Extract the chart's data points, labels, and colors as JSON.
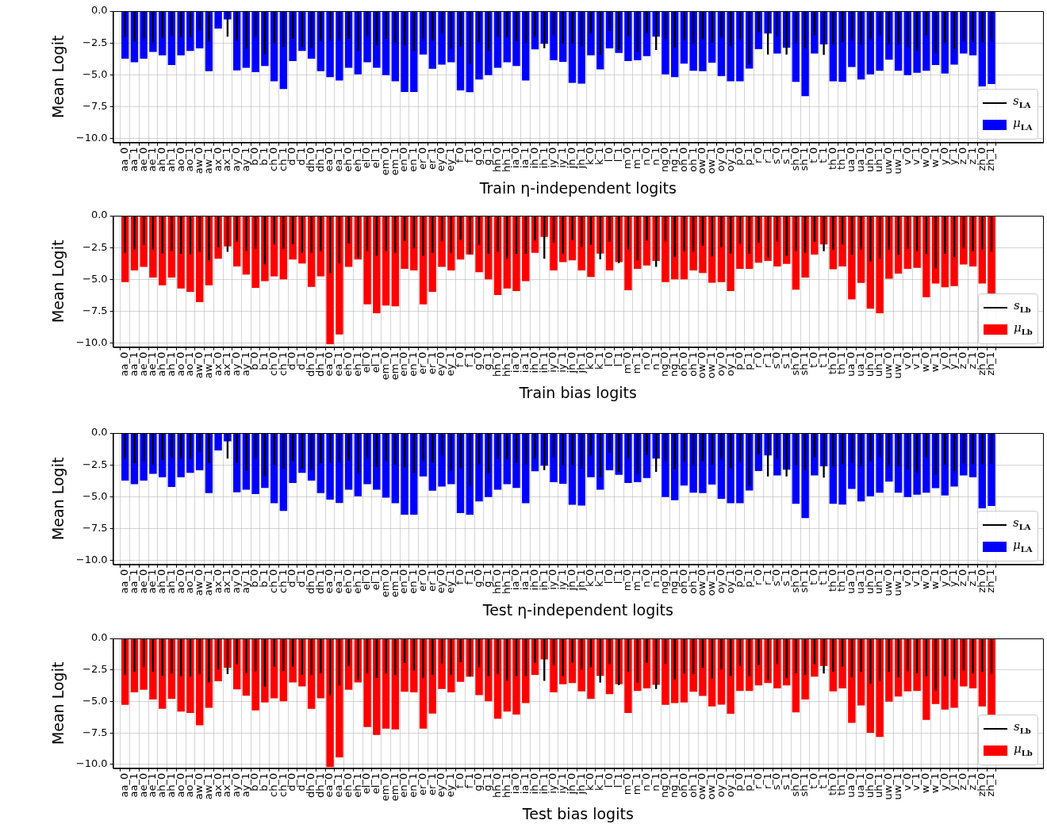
{
  "chart_data": [
    {
      "type": "bar",
      "xlabel": "Train η-independent logits",
      "ylabel": "Mean Logit",
      "grid": true,
      "legend": "bottom right",
      "ylim": [
        -10.3,
        0
      ],
      "yticks": [
        {
          "value": 0,
          "label": "0.0"
        },
        {
          "value": -2.5,
          "label": "−2.5"
        },
        {
          "value": -5,
          "label": "−5.0"
        },
        {
          "value": -7.5,
          "label": "−7.5"
        },
        {
          "value": -10,
          "label": "−10.0"
        }
      ],
      "categories": [
        "aa_0",
        "aa_1",
        "ae_0",
        "ae_1",
        "ah_0",
        "ah_1",
        "ao_0",
        "ao_1",
        "aw_0",
        "aw_1",
        "ax_0",
        "ax_1",
        "ay_0",
        "ay_1",
        "b_0",
        "b_1",
        "ch_0",
        "ch_1",
        "d_0",
        "d_1",
        "dh_0",
        "dh_1",
        "ea_0",
        "ea_1",
        "eh_0",
        "eh_1",
        "el_0",
        "el_1",
        "em_0",
        "em_1",
        "en_0",
        "en_1",
        "er_0",
        "er_1",
        "ey_0",
        "ey_1",
        "f_0",
        "f_1",
        "g_0",
        "g_1",
        "hh_0",
        "hh_1",
        "ia_0",
        "ia_1",
        "ih_0",
        "ih_1",
        "iy_0",
        "iy_1",
        "jh_0",
        "jh_1",
        "k_0",
        "k_1",
        "l_0",
        "l_1",
        "m_0",
        "m_1",
        "n_0",
        "n_1",
        "ng_0",
        "ng_1",
        "oh_0",
        "oh_1",
        "ow_0",
        "ow_1",
        "oy_0",
        "oy_1",
        "p_0",
        "p_1",
        "r_0",
        "r_1",
        "s_0",
        "s_1",
        "sh_0",
        "sh_1",
        "t_0",
        "t_1",
        "th_0",
        "th_1",
        "ua_0",
        "ua_1",
        "uh_0",
        "uh_1",
        "uw_0",
        "uw_1",
        "v_0",
        "v_1",
        "w_0",
        "w_1",
        "y_0",
        "y_1",
        "z_0",
        "z_1",
        "zh_0",
        "zh_1"
      ],
      "series": [
        {
          "type": "bar",
          "name": "μ$_{LA}$",
          "color": "#0000ff",
          "values": [
            -3.73,
            -4.0,
            -3.73,
            -3.2,
            -3.47,
            -4.23,
            -3.47,
            -3.13,
            -2.92,
            -4.71,
            -1.36,
            -0.65,
            -4.64,
            -4.45,
            -4.78,
            -4.31,
            -5.5,
            -6.1,
            -3.92,
            -3.13,
            -3.73,
            -4.71,
            -5.17,
            -5.43,
            -4.45,
            -4.95,
            -4.0,
            -4.45,
            -5.02,
            -5.5,
            -6.34,
            -6.34,
            -3.4,
            -4.52,
            -4.19,
            -4.0,
            -6.22,
            -6.36,
            -5.36,
            -5.02,
            -4.45,
            -4.0,
            -4.31,
            -5.43,
            -3.0,
            -2.56,
            -3.85,
            -3.98,
            -5.62,
            -5.69,
            -3.47,
            -4.57,
            -2.92,
            -3.28,
            -3.92,
            -3.85,
            -3.52,
            -2.01,
            -4.95,
            -5.17,
            -4.11,
            -4.67,
            -4.71,
            -4.04,
            -5.09,
            -5.5,
            -5.5,
            -4.5,
            -2.99,
            -1.75,
            -3.33,
            -2.87,
            -5.55,
            -6.67,
            -3.33,
            -2.61,
            -5.5,
            -5.55,
            -4.38,
            -5.36,
            -4.95,
            -4.67,
            -3.8,
            -4.67,
            -5.02,
            -4.83,
            -4.67,
            -4.23,
            -4.9,
            -4.19,
            -3.33,
            -3.47,
            -5.91,
            -5.72
          ]
        },
        {
          "type": "bar",
          "name": "s$_{LA}$",
          "color": "#000000",
          "values": [
            -2.0,
            -2.36,
            -2.19,
            -2.48,
            -2.12,
            -1.95,
            -2.0,
            -2.05,
            -1.52,
            -2.36,
            null,
            -2.0,
            -2.31,
            -2.95,
            -2.0,
            -3.38,
            -2.52,
            -2.79,
            -2.17,
            -2.79,
            -2.88,
            -2.36,
            -2.31,
            -2.31,
            -2.17,
            -3.14,
            -1.95,
            -2.67,
            -2.17,
            -2.48,
            -2.67,
            -3.12,
            -2.19,
            -2.31,
            -1.76,
            -2.95,
            -2.76,
            -4.14,
            -2.48,
            -3.12,
            -2.0,
            -2.05,
            -2.31,
            -2.48,
            -2.0,
            -2.9,
            -1.88,
            -2.53,
            -2.53,
            -2.8,
            -1.75,
            -3.44,
            -1.55,
            -3.04,
            -1.96,
            -3.2,
            -1.72,
            -3.04,
            -2.2,
            -2.85,
            -2.25,
            -2.56,
            -2.2,
            -2.49,
            -2.06,
            -2.73,
            -2.25,
            -4.19,
            -1.65,
            -3.4,
            -2.01,
            -3.4,
            -2.53,
            -2.92,
            -1.89,
            -3.44,
            -2.61,
            -2.44,
            -2.32,
            -2.61,
            -2.2,
            -1.89,
            -2.61,
            -2.61,
            -2.85,
            -3.09,
            -1.89,
            -3.28,
            -2.49,
            -2.99,
            -2.37,
            -2.44,
            -2.44,
            -2.37
          ]
        }
      ]
    },
    {
      "type": "bar",
      "xlabel": "Train bias logits",
      "ylabel": "Mean Logit",
      "grid": true,
      "legend": "bottom right",
      "ylim": [
        -10.3,
        0
      ],
      "yticks": [
        {
          "value": 0,
          "label": "0.0"
        },
        {
          "value": -2.5,
          "label": "−2.5"
        },
        {
          "value": -5,
          "label": "−5.0"
        },
        {
          "value": -7.5,
          "label": "−7.5"
        },
        {
          "value": -10,
          "label": "−10.0"
        }
      ],
      "categories": [
        "aa_0",
        "aa_1",
        "ae_0",
        "ae_1",
        "ah_0",
        "ah_1",
        "ao_0",
        "ao_1",
        "aw_0",
        "aw_1",
        "ax_0",
        "ax_1",
        "ay_0",
        "ay_1",
        "b_0",
        "b_1",
        "ch_0",
        "ch_1",
        "d_0",
        "d_1",
        "dh_0",
        "dh_1",
        "ea_0",
        "ea_1",
        "eh_0",
        "eh_1",
        "el_0",
        "el_1",
        "em_0",
        "em_1",
        "en_0",
        "en_1",
        "er_0",
        "er_1",
        "ey_0",
        "ey_1",
        "f_0",
        "f_1",
        "g_0",
        "g_1",
        "hh_0",
        "hh_1",
        "ia_0",
        "ia_1",
        "ih_0",
        "ih_1",
        "iy_0",
        "iy_1",
        "jh_0",
        "jh_1",
        "k_0",
        "k_1",
        "l_0",
        "l_1",
        "m_0",
        "m_1",
        "n_0",
        "n_1",
        "ng_0",
        "ng_1",
        "oh_0",
        "oh_1",
        "ow_0",
        "ow_1",
        "oy_0",
        "oy_1",
        "p_0",
        "p_1",
        "r_0",
        "r_1",
        "s_0",
        "s_1",
        "sh_0",
        "sh_1",
        "t_0",
        "t_1",
        "th_0",
        "th_1",
        "ua_0",
        "ua_1",
        "uh_0",
        "uh_1",
        "uw_0",
        "uw_1",
        "v_0",
        "v_1",
        "w_0",
        "w_1",
        "y_0",
        "y_1",
        "z_0",
        "z_1",
        "zh_0",
        "zh_1"
      ],
      "series": [
        {
          "type": "bar",
          "name": "μ$_{Lb}$",
          "color": "#ff0000",
          "values": [
            -5.2,
            -4.28,
            -4.01,
            -4.85,
            -5.46,
            -4.85,
            -5.7,
            -5.96,
            -6.77,
            -5.46,
            -3.37,
            -2.4,
            -3.97,
            -4.61,
            -5.65,
            -5.13,
            -4.75,
            -4.99,
            -3.44,
            -3.75,
            -5.58,
            -4.75,
            -10.07,
            -9.31,
            -4.01,
            -3.44,
            -6.94,
            -7.65,
            -7.03,
            -7.1,
            -4.16,
            -4.28,
            -6.94,
            -5.96,
            -4.01,
            -4.28,
            -3.44,
            -3.04,
            -4.42,
            -4.99,
            -6.22,
            -5.7,
            -5.91,
            -5.13,
            -2.9,
            -1.66,
            -4.28,
            -3.63,
            -3.49,
            -4.28,
            -4.8,
            -2.97,
            -4.28,
            -3.63,
            -5.84,
            -4.16,
            -3.9,
            -3.54,
            -5.2,
            -4.99,
            -4.99,
            -4.28,
            -4.49,
            -5.25,
            -5.2,
            -5.91,
            -4.16,
            -4.16,
            -3.68,
            -3.54,
            -3.97,
            -3.78,
            -5.8,
            -4.85,
            -3.04,
            -2.26,
            -4.2,
            -3.97,
            -6.56,
            -5.27,
            -7.29,
            -7.65,
            -4.94,
            -4.54,
            -4.16,
            -4.09,
            -6.39,
            -5.32,
            -5.61,
            -5.51,
            -3.82,
            -3.97,
            -5.32,
            -6.1
          ]
        },
        {
          "type": "bar",
          "name": "s$_{Lb}$",
          "color": "#000000",
          "values": [
            -2.9,
            -2.64,
            -2.28,
            -2.64,
            -2.95,
            -2.78,
            -2.99,
            -3.02,
            -2.83,
            -3.49,
            -2.47,
            -2.83,
            -2.04,
            -2.76,
            -2.59,
            -3.82,
            -2.23,
            -2.59,
            -2.23,
            -2.9,
            -2.9,
            -2.76,
            -4.49,
            -3.73,
            -2.18,
            -3.3,
            -2.76,
            -3.14,
            -2.76,
            -2.9,
            -1.95,
            -2.54,
            -3.14,
            -2.9,
            -1.99,
            -2.9,
            -1.88,
            -3.02,
            -2.28,
            -2.99,
            -2.83,
            -3.35,
            -2.99,
            -2.99,
            -1.95,
            -3.37,
            -2.11,
            -2.97,
            -1.92,
            -2.47,
            -2.28,
            -3.42,
            -2.04,
            -3.71,
            -2.64,
            -3.49,
            -1.95,
            -4.01,
            -2.02,
            -3.25,
            -2.78,
            -2.83,
            -2.35,
            -3.18,
            -2.47,
            -2.95,
            -2.18,
            -2.99,
            -2.11,
            -3.3,
            -2.04,
            -3.14,
            -2.76,
            -2.9,
            -2.04,
            -2.78,
            -2.66,
            -2.23,
            -3.06,
            -2.66,
            -3.59,
            -3.37,
            -2.66,
            -3.06,
            -2.59,
            -2.76,
            -2.99,
            -4.13,
            -2.99,
            -3.25,
            -2.54,
            -2.78,
            -2.64,
            -2.83
          ]
        }
      ]
    },
    {
      "type": "bar",
      "xlabel": "Test η-independent logits",
      "ylabel": "Mean Logit",
      "grid": true,
      "legend": "bottom right",
      "ylim": [
        -10.3,
        0
      ],
      "yticks": [
        {
          "value": 0,
          "label": "0.0"
        },
        {
          "value": -2.5,
          "label": "−2.5"
        },
        {
          "value": -5,
          "label": "−5.0"
        },
        {
          "value": -7.5,
          "label": "−7.5"
        },
        {
          "value": -10,
          "label": "−10.0"
        }
      ],
      "categories": [
        "aa_0",
        "aa_1",
        "ae_0",
        "ae_1",
        "ah_0",
        "ah_1",
        "ao_0",
        "ao_1",
        "aw_0",
        "aw_1",
        "ax_0",
        "ax_1",
        "ay_0",
        "ay_1",
        "b_0",
        "b_1",
        "ch_0",
        "ch_1",
        "d_0",
        "d_1",
        "dh_0",
        "dh_1",
        "ea_0",
        "ea_1",
        "eh_0",
        "eh_1",
        "el_0",
        "el_1",
        "em_0",
        "em_1",
        "en_0",
        "en_1",
        "er_0",
        "er_1",
        "ey_0",
        "ey_1",
        "f_0",
        "f_1",
        "g_0",
        "g_1",
        "hh_0",
        "hh_1",
        "ia_0",
        "ia_1",
        "ih_0",
        "ih_1",
        "iy_0",
        "iy_1",
        "jh_0",
        "jh_1",
        "k_0",
        "k_1",
        "l_0",
        "l_1",
        "m_0",
        "m_1",
        "n_0",
        "n_1",
        "ng_0",
        "ng_1",
        "oh_0",
        "oh_1",
        "ow_0",
        "ow_1",
        "oy_0",
        "oy_1",
        "p_0",
        "p_1",
        "r_0",
        "r_1",
        "s_0",
        "s_1",
        "sh_0",
        "sh_1",
        "t_0",
        "t_1",
        "th_0",
        "th_1",
        "ua_0",
        "ua_1",
        "uh_0",
        "uh_1",
        "uw_0",
        "uw_1",
        "v_0",
        "v_1",
        "w_0",
        "w_1",
        "y_0",
        "y_1",
        "z_0",
        "z_1",
        "zh_0",
        "zh_1"
      ],
      "series": [
        {
          "type": "bar",
          "name": "μ$_{LA}$",
          "color": "#0000ff",
          "values": [
            -3.73,
            -4.0,
            -3.73,
            -3.2,
            -3.47,
            -4.23,
            -3.47,
            -3.13,
            -2.92,
            -4.71,
            -1.36,
            -0.65,
            -4.64,
            -4.45,
            -4.78,
            -4.31,
            -5.5,
            -6.1,
            -3.92,
            -3.13,
            -3.73,
            -4.71,
            -5.22,
            -5.48,
            -4.45,
            -4.95,
            -4.0,
            -4.45,
            -5.07,
            -5.5,
            -6.4,
            -6.4,
            -3.4,
            -4.52,
            -4.19,
            -4.0,
            -6.27,
            -6.4,
            -5.36,
            -5.02,
            -4.45,
            -4.0,
            -4.31,
            -5.5,
            -3.0,
            -2.56,
            -3.85,
            -3.98,
            -5.62,
            -5.69,
            -3.47,
            -4.45,
            -2.92,
            -3.28,
            -3.92,
            -3.85,
            -3.52,
            -2.01,
            -5.02,
            -5.27,
            -4.11,
            -4.67,
            -4.71,
            -4.04,
            -5.15,
            -5.5,
            -5.5,
            -4.5,
            -2.99,
            -1.75,
            -3.33,
            -2.87,
            -5.55,
            -6.67,
            -3.33,
            -2.61,
            -5.55,
            -5.6,
            -4.38,
            -5.36,
            -4.95,
            -4.67,
            -3.8,
            -4.67,
            -5.02,
            -4.83,
            -4.67,
            -4.32,
            -4.9,
            -4.19,
            -3.33,
            -3.47,
            -5.91,
            -5.72
          ]
        },
        {
          "type": "bar",
          "name": "s$_{LA}$",
          "color": "#000000",
          "values": [
            -2.0,
            -2.36,
            -2.19,
            -2.48,
            -2.12,
            -1.95,
            -2.0,
            -2.05,
            -1.52,
            -2.36,
            null,
            -2.0,
            -2.31,
            -2.95,
            -2.0,
            -3.38,
            -2.52,
            -2.79,
            -2.17,
            -2.79,
            -2.88,
            -2.36,
            -2.31,
            -2.31,
            -2.17,
            -3.14,
            -1.95,
            -2.67,
            -2.17,
            -2.48,
            -2.67,
            -3.12,
            -2.19,
            -2.31,
            -1.76,
            -2.95,
            -2.76,
            -4.14,
            -2.48,
            -3.12,
            -2.0,
            -2.05,
            -2.31,
            -2.48,
            -2.0,
            -2.9,
            -1.88,
            -2.53,
            -2.53,
            -2.8,
            -1.75,
            -3.44,
            -1.55,
            -3.04,
            -1.96,
            -3.2,
            -1.72,
            -3.04,
            -2.2,
            -2.85,
            -2.25,
            -2.56,
            -2.2,
            -2.49,
            -2.06,
            -2.73,
            -2.25,
            -4.19,
            -1.65,
            -3.4,
            -2.01,
            -3.4,
            -2.53,
            -2.92,
            -1.89,
            -3.5,
            -2.61,
            -2.44,
            -2.32,
            -2.61,
            -2.2,
            -1.89,
            -2.61,
            -2.61,
            -2.85,
            -3.09,
            -1.89,
            -3.28,
            -2.49,
            -2.99,
            -2.37,
            -2.44,
            -2.44,
            -2.37
          ]
        }
      ]
    },
    {
      "type": "bar",
      "xlabel": "Test bias logits",
      "ylabel": "Mean Logit",
      "grid": true,
      "legend": "bottom right",
      "ylim": [
        -10.3,
        0
      ],
      "yticks": [
        {
          "value": 0,
          "label": "0.0"
        },
        {
          "value": -2.5,
          "label": "−2.5"
        },
        {
          "value": -5,
          "label": "−5.0"
        },
        {
          "value": -7.5,
          "label": "−7.5"
        },
        {
          "value": -10,
          "label": "−10.0"
        }
      ],
      "categories": [
        "aa_0",
        "aa_1",
        "ae_0",
        "ae_1",
        "ah_0",
        "ah_1",
        "ao_0",
        "ao_1",
        "aw_0",
        "aw_1",
        "ax_0",
        "ax_1",
        "ay_0",
        "ay_1",
        "b_0",
        "b_1",
        "ch_0",
        "ch_1",
        "d_0",
        "d_1",
        "dh_0",
        "dh_1",
        "ea_0",
        "ea_1",
        "eh_0",
        "eh_1",
        "el_0",
        "el_1",
        "em_0",
        "em_1",
        "en_0",
        "en_1",
        "er_0",
        "er_1",
        "ey_0",
        "ey_1",
        "f_0",
        "f_1",
        "g_0",
        "g_1",
        "hh_0",
        "hh_1",
        "ia_0",
        "ia_1",
        "ih_0",
        "ih_1",
        "iy_0",
        "iy_1",
        "jh_0",
        "jh_1",
        "k_0",
        "k_1",
        "l_0",
        "l_1",
        "m_0",
        "m_1",
        "n_0",
        "n_1",
        "ng_0",
        "ng_1",
        "oh_0",
        "oh_1",
        "ow_0",
        "ow_1",
        "oy_0",
        "oy_1",
        "p_0",
        "p_1",
        "r_0",
        "r_1",
        "s_0",
        "s_1",
        "sh_0",
        "sh_1",
        "t_0",
        "t_1",
        "th_0",
        "th_1",
        "ua_0",
        "ua_1",
        "uh_0",
        "uh_1",
        "uw_0",
        "uw_1",
        "v_0",
        "v_1",
        "w_0",
        "w_1",
        "y_0",
        "y_1",
        "z_0",
        "z_1",
        "zh_0",
        "zh_1"
      ],
      "series": [
        {
          "type": "bar",
          "name": "μ$_{Lb}$",
          "color": "#ff0000",
          "values": [
            -5.27,
            -4.28,
            -4.08,
            -4.85,
            -5.58,
            -4.8,
            -5.8,
            -5.91,
            -6.89,
            -5.51,
            -3.4,
            -2.33,
            -4.04,
            -4.54,
            -5.7,
            -5.08,
            -4.75,
            -4.99,
            -3.49,
            -3.8,
            -5.58,
            -4.75,
            -10.2,
            -9.43,
            -4.08,
            -3.49,
            -7.03,
            -7.65,
            -7.15,
            -7.22,
            -4.23,
            -4.28,
            -7.15,
            -5.96,
            -4.01,
            -4.28,
            -3.44,
            -3.04,
            -4.49,
            -4.99,
            -6.37,
            -5.8,
            -6.03,
            -5.13,
            -2.9,
            -1.66,
            -4.28,
            -3.63,
            -3.54,
            -4.2,
            -4.8,
            -2.97,
            -4.42,
            -3.63,
            -5.91,
            -4.16,
            -3.97,
            -3.68,
            -5.27,
            -5.13,
            -5.08,
            -4.23,
            -4.56,
            -5.39,
            -5.25,
            -5.98,
            -4.16,
            -4.16,
            -3.73,
            -3.54,
            -3.97,
            -3.73,
            -5.87,
            -4.85,
            -3.04,
            -2.18,
            -4.2,
            -3.97,
            -6.7,
            -5.32,
            -7.48,
            -7.81,
            -5.01,
            -4.61,
            -4.2,
            -4.16,
            -6.46,
            -5.2,
            -5.65,
            -5.51,
            -3.8,
            -3.97,
            -5.39,
            -6.15
          ]
        },
        {
          "type": "bar",
          "name": "s$_{Lb}$",
          "color": "#000000",
          "values": [
            -2.9,
            -2.64,
            -2.28,
            -2.64,
            -2.95,
            -2.78,
            -2.99,
            -3.02,
            -2.83,
            -3.49,
            -2.47,
            -2.83,
            -2.04,
            -2.76,
            -2.59,
            -3.82,
            -2.23,
            -2.59,
            -2.23,
            -2.9,
            -2.9,
            -2.76,
            -4.49,
            -3.73,
            -2.18,
            -3.3,
            -2.76,
            -3.14,
            -2.76,
            -2.9,
            -1.95,
            -2.54,
            -3.14,
            -2.9,
            -1.99,
            -2.9,
            -1.88,
            -3.02,
            -2.28,
            -2.99,
            -2.83,
            -3.35,
            -2.99,
            -2.99,
            -1.95,
            -3.37,
            -2.11,
            -2.97,
            -1.92,
            -2.47,
            -2.28,
            -3.51,
            -2.04,
            -3.71,
            -2.64,
            -3.49,
            -1.95,
            -4.01,
            -2.02,
            -3.25,
            -2.78,
            -2.83,
            -2.35,
            -3.18,
            -2.47,
            -2.95,
            -2.18,
            -2.99,
            -2.11,
            -3.3,
            -2.04,
            -3.14,
            -2.76,
            -2.9,
            -2.04,
            -2.78,
            -2.66,
            -2.23,
            -3.06,
            -2.66,
            -3.59,
            -3.37,
            -2.66,
            -3.06,
            -2.59,
            -2.76,
            -2.99,
            -4.13,
            -2.99,
            -3.25,
            -2.54,
            -2.78,
            -2.64,
            -2.83
          ]
        }
      ]
    }
  ]
}
